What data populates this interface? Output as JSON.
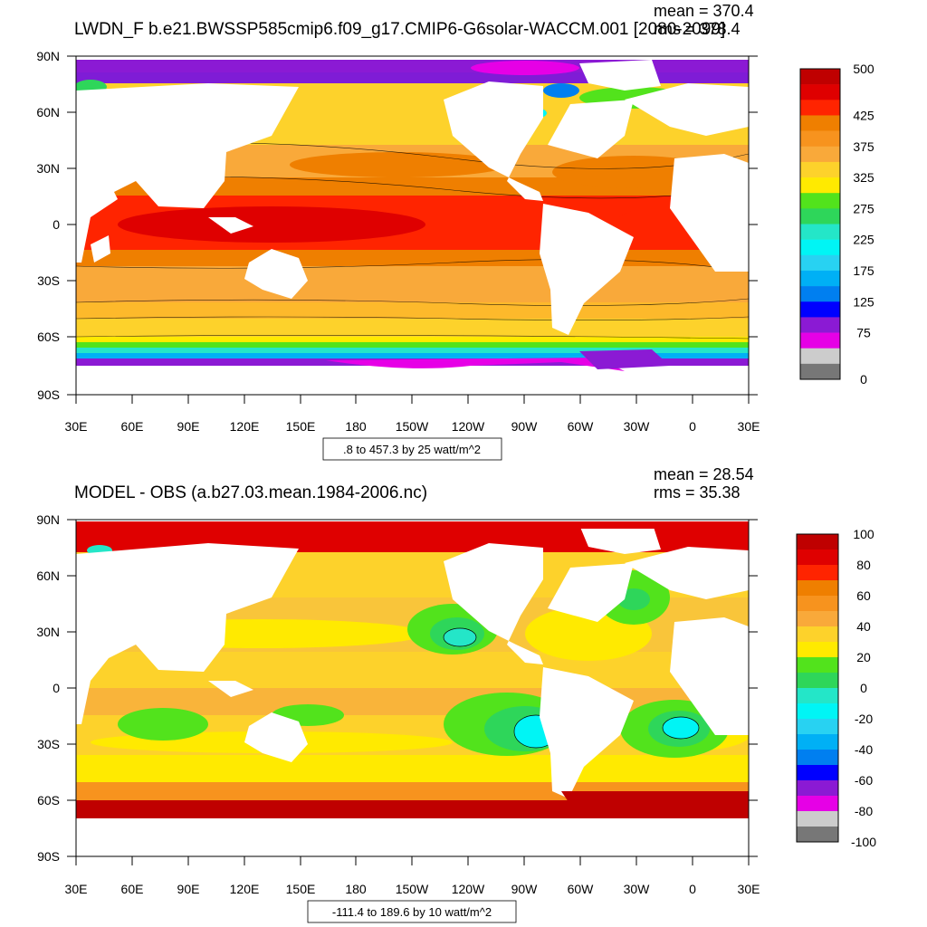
{
  "panels": [
    {
      "title": "LWDN_F b.e21.BWSSP585cmip6.f09_g17.CMIP6-G6solar-WACCM.001 [2080-2099]",
      "mean_text": "mean = 370.4",
      "rms_text": "rms = 378.4",
      "lat_ticks": [
        "90N",
        "60N",
        "30N",
        "0",
        "30S",
        "60S",
        "90S"
      ],
      "lon_ticks": [
        "30E",
        "60E",
        "90E",
        "120E",
        "150E",
        "180",
        "150W",
        "120W",
        "90W",
        "60W",
        "30W",
        "0",
        "30E"
      ],
      "info_text": ".8 to 457.3 by 25 watt/m^2",
      "colorbar": {
        "colors": [
          "#bf0000",
          "#df0000",
          "#ff2400",
          "#ef7f00",
          "#f7931e",
          "#f9a93a",
          "#fdd22b",
          "#ffea00",
          "#52e31c",
          "#2ed65a",
          "#24e6c8",
          "#00f5f5",
          "#28d2f2",
          "#00b0f5",
          "#007ff0",
          "#0000ff",
          "#8b1ad4",
          "#e600e6",
          "#cccccc",
          "#777777"
        ],
        "labels": [
          {
            "text": "500",
            "index": 0
          },
          {
            "text": "425",
            "index": 3
          },
          {
            "text": "375",
            "index": 5
          },
          {
            "text": "325",
            "index": 7
          },
          {
            "text": "275",
            "index": 9
          },
          {
            "text": "225",
            "index": 11
          },
          {
            "text": "175",
            "index": 13
          },
          {
            "text": "125",
            "index": 15
          },
          {
            "text": "75",
            "index": 17
          },
          {
            "text": "0",
            "index": 20
          }
        ]
      }
    },
    {
      "title": "MODEL - OBS (a.b27.03.mean.1984-2006.nc)",
      "mean_text": "mean = 28.54",
      "rms_text": "rms = 35.38",
      "lat_ticks": [
        "90N",
        "60N",
        "30N",
        "0",
        "30S",
        "60S",
        "90S"
      ],
      "lon_ticks": [
        "30E",
        "60E",
        "90E",
        "120E",
        "150E",
        "180",
        "150W",
        "120W",
        "90W",
        "60W",
        "30W",
        "0",
        "30E"
      ],
      "info_text": "-111.4 to 189.6 by 10 watt/m^2",
      "colorbar": {
        "colors": [
          "#bf0000",
          "#df0000",
          "#ff2400",
          "#ef7f00",
          "#f7931e",
          "#f9a93a",
          "#fdd22b",
          "#ffea00",
          "#52e31c",
          "#2ed65a",
          "#24e6c8",
          "#00f5f5",
          "#28d2f2",
          "#00b0f5",
          "#007ff0",
          "#0000ff",
          "#8b1ad4",
          "#e600e6",
          "#cccccc",
          "#777777"
        ],
        "labels": [
          {
            "text": "100",
            "index": 0
          },
          {
            "text": "80",
            "index": 2
          },
          {
            "text": "60",
            "index": 4
          },
          {
            "text": "40",
            "index": 6
          },
          {
            "text": "20",
            "index": 8
          },
          {
            "text": "0",
            "index": 10
          },
          {
            "text": "-20",
            "index": 12
          },
          {
            "text": "-40",
            "index": 14
          },
          {
            "text": "-60",
            "index": 16
          },
          {
            "text": "-80",
            "index": 18
          },
          {
            "text": "-100",
            "index": 20
          }
        ]
      }
    }
  ]
}
